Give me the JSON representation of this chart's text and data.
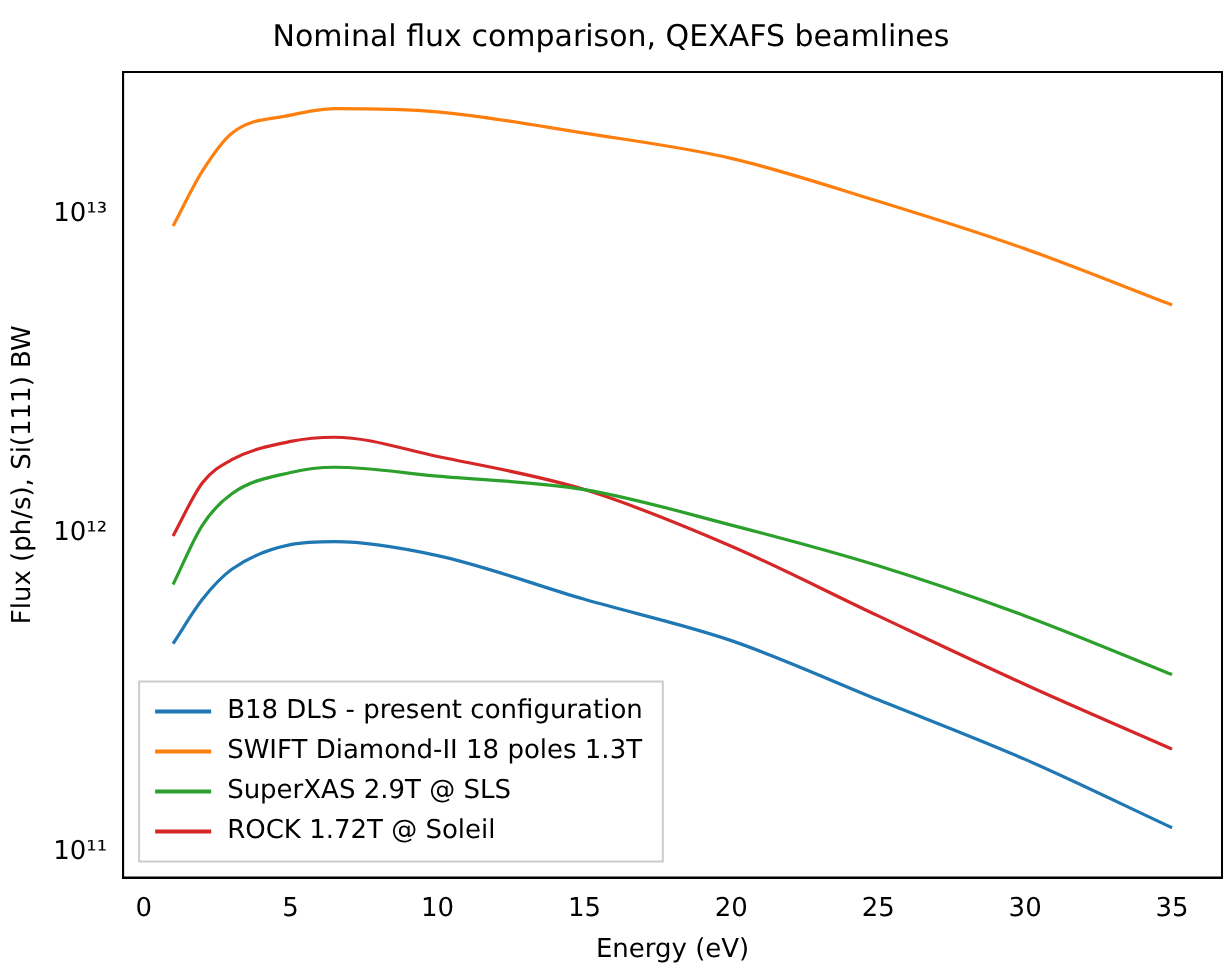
{
  "chart_data": {
    "type": "line",
    "title": "Nominal flux comparison, QEXAFS beamlines",
    "xlabel": "Energy (eV)",
    "ylabel": "Flux (ph/s), Si(111) BW",
    "log": "y",
    "grid": false,
    "legend": "bottom left",
    "marker": "none",
    "line_style": "solid",
    "xlim": [
      -0.7,
      36.7
    ],
    "xticks": [
      0,
      5,
      10,
      15,
      20,
      25,
      30,
      35
    ],
    "ylim": [
      83000000000.0,
      28000000000000.0
    ],
    "yticks": [
      {
        "value": 100000000000.0,
        "label": "10¹¹"
      },
      {
        "value": 1000000000000.0,
        "label": "10¹²"
      },
      {
        "value": 10000000000000.0,
        "label": "10¹³"
      }
    ],
    "x": [
      1,
      2,
      3,
      5,
      6.5,
      10,
      15,
      20,
      25,
      30,
      35
    ],
    "series": [
      {
        "name": "B18 DLS - present configuration",
        "color": "#1f77b4",
        "values": [
          450000000000.0,
          620000000000.0,
          770000000000.0,
          920000000000.0,
          940000000000.0,
          850000000000.0,
          620000000000.0,
          460000000000.0,
          300000000000.0,
          195000000000.0,
          119000000000.0
        ]
      },
      {
        "name": "SWIFT Diamond-II 18 poles 1.3T",
        "color": "#ff7f0e",
        "values": [
          9200000000000.0,
          13700000000000.0,
          18000000000000.0,
          20500000000000.0,
          21500000000000.0,
          21000000000000.0,
          18000000000000.0,
          15000000000000.0,
          11000000000000.0,
          7800000000000.0,
          5200000000000.0
        ]
      },
      {
        "name": "SuperXAS 2.9T @ SLS",
        "color": "#2ca02c",
        "values": [
          690000000000.0,
          1060000000000.0,
          1330000000000.0,
          1550000000000.0,
          1610000000000.0,
          1510000000000.0,
          1370000000000.0,
          1060000000000.0,
          790000000000.0,
          550000000000.0,
          360000000000.0
        ]
      },
      {
        "name": "ROCK 1.72T @ Soleil",
        "color": "#d62728",
        "values": [
          980000000000.0,
          1440000000000.0,
          1700000000000.0,
          1940000000000.0,
          2000000000000.0,
          1740000000000.0,
          1370000000000.0,
          910000000000.0,
          550000000000.0,
          335000000000.0,
          210000000000.0
        ]
      }
    ]
  }
}
